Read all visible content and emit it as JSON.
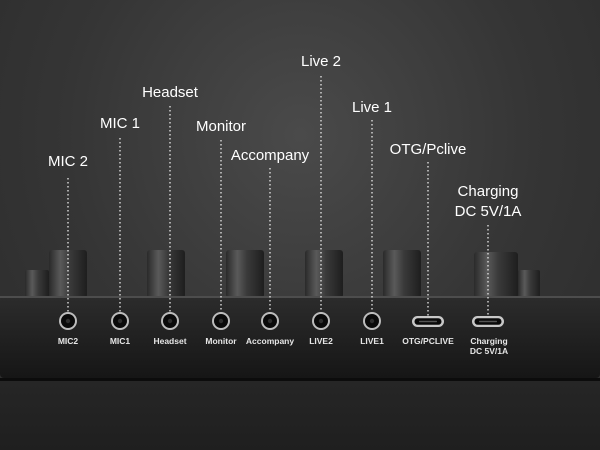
{
  "callouts": {
    "mic2": "MIC 2",
    "mic1": "MIC 1",
    "headset": "Headset",
    "monitor": "Monitor",
    "accompany": "Accompany",
    "live2": "Live 2",
    "live1": "Live 1",
    "otg": "OTG/Pclive",
    "charging_line1": "Charging",
    "charging_line2": "DC 5V/1A"
  },
  "port_labels": {
    "mic2": "MIC2",
    "mic1": "MIC1",
    "headset": "Headset",
    "monitor": "Monitor",
    "accompany": "Accompany",
    "live2": "LIVE2",
    "live1": "LIVE1",
    "otg": "OTG/PCLIVE",
    "charging_line1": "Charging",
    "charging_line2": "DC 5V/1A"
  },
  "colors": {
    "background": "#353535",
    "device_body": "#1c1c1c",
    "text": "#ffffff"
  }
}
